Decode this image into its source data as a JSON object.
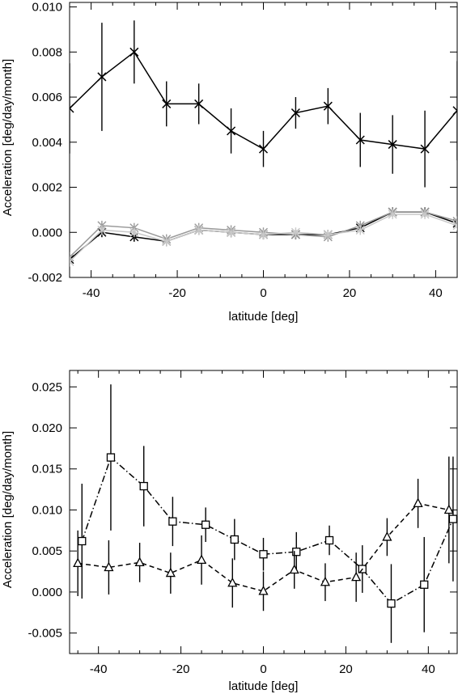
{
  "chart_data": [
    {
      "type": "line",
      "xlabel": "latitude [deg]",
      "ylabel": "Acceleration [deg/day/month]",
      "xlim": [
        -45,
        45
      ],
      "ylim": [
        -0.002,
        0.0102
      ],
      "xticks": [
        -40,
        -20,
        0,
        20,
        40
      ],
      "xtick_labels": [
        "-40",
        "-20",
        "0",
        "20",
        "40"
      ],
      "yticks": [
        -0.002,
        0.0,
        0.002,
        0.004,
        0.006,
        0.008,
        0.01
      ],
      "ytick_labels": [
        "-0.002",
        "0.000",
        "0.002",
        "0.004",
        "0.006",
        "0.008",
        "0.010"
      ],
      "grid": false,
      "series": [
        {
          "style": "solid",
          "marker": "x",
          "color": "#000000",
          "x": [
            -45,
            -37.5,
            -30,
            -22.5,
            -15,
            -7.5,
            0,
            7.5,
            15,
            22.5,
            30,
            37.5,
            45
          ],
          "y": [
            0.0055,
            0.0069,
            0.008,
            0.0057,
            0.0057,
            0.0045,
            0.0037,
            0.0053,
            0.0056,
            0.0041,
            0.0039,
            0.0037,
            0.0054
          ],
          "yerr": [
            0.002,
            0.0024,
            0.0014,
            0.001,
            0.0009,
            0.001,
            0.0008,
            0.0007,
            0.0008,
            0.0012,
            0.0013,
            0.0017,
            0.0022
          ]
        },
        {
          "style": "solid",
          "marker": "asterisk",
          "color": "#000000",
          "x": [
            -45,
            -37.5,
            -30,
            -22.5,
            -15,
            -7.5,
            0,
            7.5,
            15,
            22.5,
            30,
            37.5,
            45
          ],
          "y": [
            -0.0012,
            0.0,
            -0.0002,
            -0.0004,
            0.0001,
            -0.0,
            -0.0001,
            -0.0001,
            -0.0001,
            0.0002,
            0.0009,
            0.0009,
            0.0004
          ],
          "yerr": [
            0.0003,
            0.0002,
            0.0002,
            0.0001,
            0.0001,
            0.0001,
            0.0001,
            0.0001,
            0.0001,
            0.0001,
            0.0002,
            0.0002,
            0.0002
          ]
        },
        {
          "style": "solid",
          "marker": "asterisk",
          "color": "#999999",
          "x": [
            -45,
            -37.5,
            -30,
            -22.5,
            -15,
            -7.5,
            0,
            7.5,
            15,
            22.5,
            30,
            37.5,
            45
          ],
          "y": [
            -0.0011,
            0.0003,
            0.0002,
            -0.0003,
            0.0002,
            0.0001,
            0.0,
            -0.0001,
            -0.0002,
            0.0003,
            0.0009,
            0.0009,
            0.0005
          ],
          "yerr": [
            0.0002,
            0.0001,
            0.0001,
            0.0001,
            0.0001,
            0.0001,
            0.0001,
            0.0001,
            0.0001,
            0.0001,
            0.0001,
            0.0001,
            0.0001
          ]
        },
        {
          "style": "solid",
          "marker": "asterisk",
          "color": "#c8c8c8",
          "x": [
            -45,
            -37.5,
            -30,
            -22.5,
            -15,
            -7.5,
            0,
            7.5,
            15,
            22.5,
            30,
            37.5,
            45
          ],
          "y": [
            -0.0013,
            0.0001,
            0.0,
            -0.0004,
            0.0001,
            0.0,
            -0.0001,
            0.0,
            -0.0001,
            0.0001,
            0.0008,
            0.0008,
            0.0003
          ],
          "yerr": [
            0.0002,
            0.0001,
            0.0001,
            0.0001,
            0.0001,
            0.0001,
            0.0001,
            0.0001,
            0.0001,
            0.0001,
            0.0001,
            0.0001,
            0.0001
          ]
        }
      ]
    },
    {
      "type": "line",
      "xlabel": "latitude [deg]",
      "ylabel": "Acceleration [deg/day/month]",
      "xlim": [
        -47,
        47
      ],
      "ylim": [
        -0.0075,
        0.027
      ],
      "xticks": [
        -40,
        -20,
        0,
        20,
        40
      ],
      "xtick_labels": [
        "-40",
        "-20",
        "0",
        "20",
        "40"
      ],
      "yticks": [
        -0.005,
        0.0,
        0.005,
        0.01,
        0.015,
        0.02,
        0.025
      ],
      "ytick_labels": [
        "-0.005",
        "0.000",
        "0.005",
        "0.010",
        "0.015",
        "0.020",
        "0.025"
      ],
      "grid": false,
      "series": [
        {
          "style": "dashdot",
          "marker": "square",
          "color": "#000000",
          "x": [
            -44,
            -37,
            -29,
            -22,
            -14,
            -7,
            0,
            8,
            16,
            24,
            31,
            39,
            46
          ],
          "y": [
            0.0062,
            0.0164,
            0.0129,
            0.0086,
            0.0082,
            0.0064,
            0.0046,
            0.0049,
            0.0063,
            0.0028,
            -0.0014,
            0.0009,
            0.0089
          ],
          "yerr": [
            0.007,
            0.0089,
            0.0049,
            0.003,
            0.0021,
            0.0025,
            0.002,
            0.0024,
            0.0018,
            0.0029,
            0.0048,
            0.0058,
            0.0076
          ]
        },
        {
          "style": "dashed",
          "marker": "triangle",
          "color": "#000000",
          "x": [
            -45,
            -37.5,
            -30,
            -22.5,
            -15,
            -7.5,
            0,
            7.5,
            15,
            22.5,
            30,
            37.5,
            45
          ],
          "y": [
            0.0035,
            0.003,
            0.0036,
            0.0023,
            0.0039,
            0.0011,
            0.0001,
            0.0027,
            0.0012,
            0.0018,
            0.0067,
            0.0108,
            0.01
          ],
          "yerr": [
            0.004,
            0.0033,
            0.0024,
            0.0025,
            0.003,
            0.003,
            0.0024,
            0.0023,
            0.0023,
            0.003,
            0.0023,
            0.003,
            0.0065
          ]
        }
      ]
    }
  ]
}
